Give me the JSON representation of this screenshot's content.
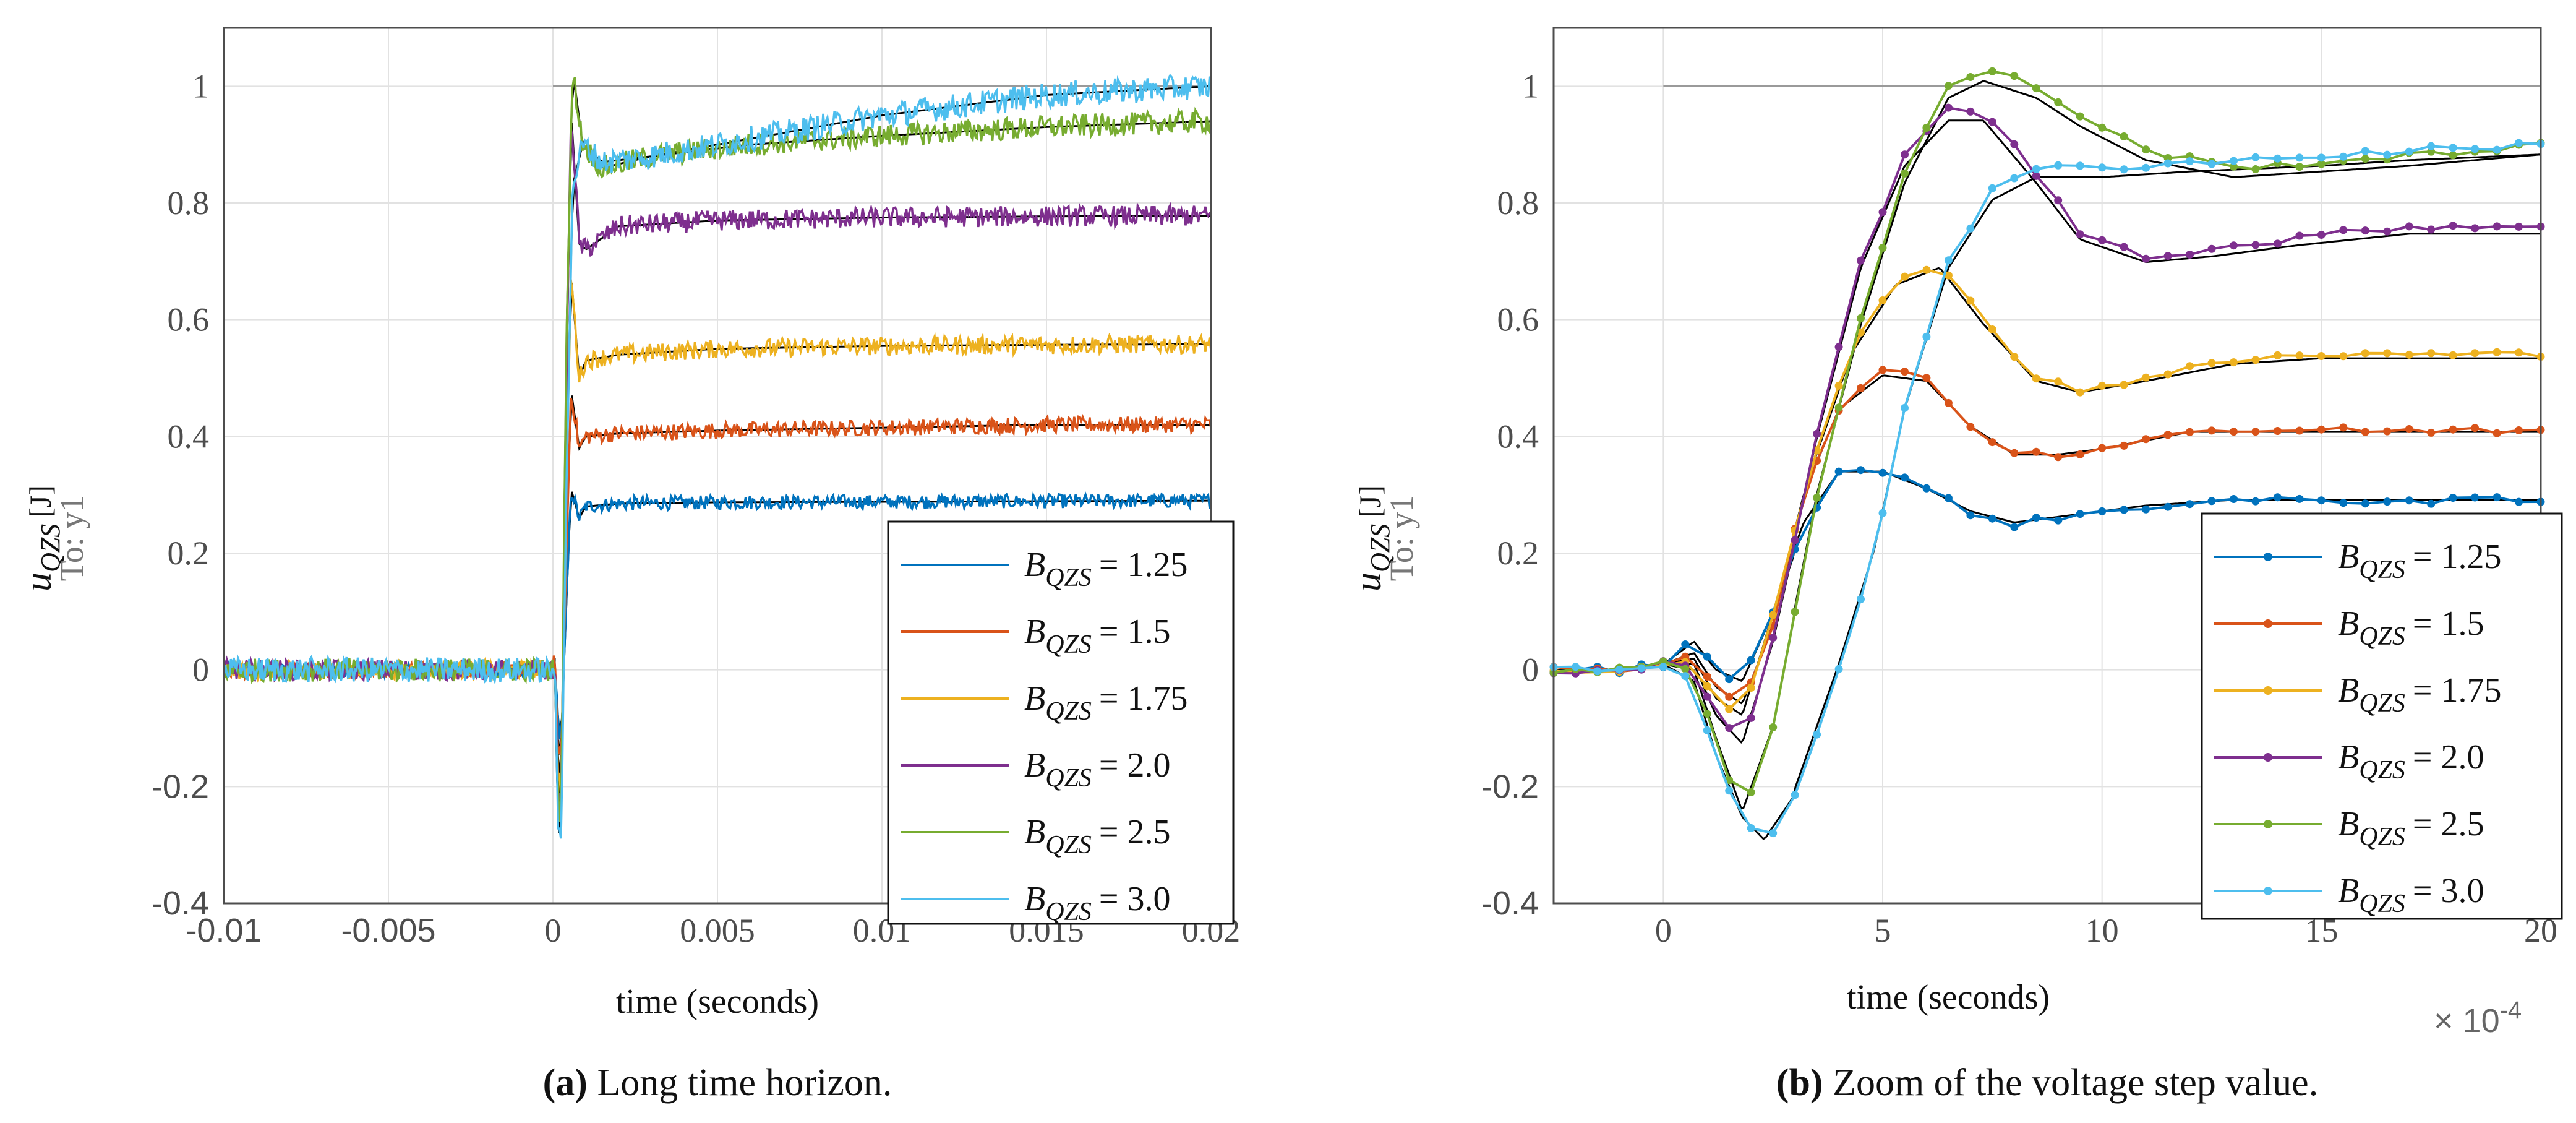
{
  "colors": {
    "series": [
      "#0072BD",
      "#D95319",
      "#EDB120",
      "#7E2F8E",
      "#77AC30",
      "#4DBEEE"
    ],
    "model": "#000000",
    "grid": "#e2e2e2",
    "axis": "#4d4d4d"
  },
  "captions": {
    "a_label": "(a)",
    "a_text": " Long time horizon.",
    "b_label": "(b)",
    "b_text": " Zoom of the voltage step value."
  },
  "legend": {
    "prefix": "B",
    "subscript": "QZS",
    "entries": [
      "= 1.25",
      "= 1.5",
      "= 1.75",
      "= 2.0",
      "= 2.5",
      "= 3.0"
    ]
  },
  "chart_data": [
    {
      "id": "a",
      "type": "line",
      "title": "",
      "xlabel": "time (seconds)",
      "ylabel": {
        "main": "u",
        "sub": "QZS",
        "unit": "[J]",
        "to": "To: y1"
      },
      "xlim": [
        -0.01,
        0.02
      ],
      "ylim": [
        -0.4,
        1.1
      ],
      "xticks": [
        -0.01,
        -0.005,
        0,
        0.005,
        0.01,
        0.015,
        0.02
      ],
      "xtick_labels": [
        "-0.01",
        "-0.005",
        "0",
        "0.005",
        "0.01",
        "0.015",
        "0.02"
      ],
      "yticks": [
        -0.4,
        -0.2,
        0,
        0.2,
        0.4,
        0.6,
        0.8,
        1
      ],
      "ytick_labels": [
        "-0.4",
        "-0.2",
        "0",
        "0.2",
        "0.4",
        "0.6",
        "0.8",
        "1"
      ],
      "reference_line": 1,
      "grid": true,
      "legend_position": "bottom-right",
      "series": [
        {
          "name": "B_QZS = 1.25",
          "values": [
            [
              -0.01,
              0
            ],
            [
              0,
              0
            ],
            [
              5e-05,
              0.02
            ],
            [
              0.00015,
              -0.09
            ],
            [
              0.00025,
              -0.12
            ],
            [
              0.0004,
              0.1
            ],
            [
              0.00055,
              0.31
            ],
            [
              0.0008,
              0.26
            ],
            [
              0.001,
              0.28
            ],
            [
              0.002,
              0.285
            ],
            [
              0.005,
              0.287
            ],
            [
              0.01,
              0.288
            ],
            [
              0.015,
              0.289
            ],
            [
              0.02,
              0.29
            ]
          ]
        },
        {
          "name": "B_QZS = 1.5",
          "values": [
            [
              -0.01,
              0
            ],
            [
              0,
              0
            ],
            [
              5e-05,
              0.02
            ],
            [
              0.00015,
              -0.13
            ],
            [
              0.00025,
              -0.16
            ],
            [
              0.0004,
              0.18
            ],
            [
              0.00055,
              0.48
            ],
            [
              0.0008,
              0.38
            ],
            [
              0.001,
              0.4
            ],
            [
              0.002,
              0.405
            ],
            [
              0.005,
              0.41
            ],
            [
              0.01,
              0.415
            ],
            [
              0.015,
              0.42
            ],
            [
              0.02,
              0.42
            ]
          ]
        },
        {
          "name": "B_QZS = 1.75",
          "values": [
            [
              -0.01,
              0
            ],
            [
              0,
              0
            ],
            [
              5e-05,
              0.02
            ],
            [
              0.00015,
              -0.17
            ],
            [
              0.00025,
              -0.2
            ],
            [
              0.0004,
              0.3
            ],
            [
              0.00055,
              0.68
            ],
            [
              0.0008,
              0.5
            ],
            [
              0.001,
              0.53
            ],
            [
              0.002,
              0.54
            ],
            [
              0.005,
              0.55
            ],
            [
              0.01,
              0.555
            ],
            [
              0.015,
              0.557
            ],
            [
              0.02,
              0.558
            ]
          ]
        },
        {
          "name": "B_QZS = 2.0",
          "values": [
            [
              -0.01,
              0
            ],
            [
              0,
              0
            ],
            [
              5e-05,
              0.02
            ],
            [
              0.00015,
              -0.2
            ],
            [
              0.00025,
              -0.24
            ],
            [
              0.0004,
              0.45
            ],
            [
              0.00055,
              0.96
            ],
            [
              0.0008,
              0.73
            ],
            [
              0.001,
              0.72
            ],
            [
              0.002,
              0.76
            ],
            [
              0.005,
              0.77
            ],
            [
              0.01,
              0.775
            ],
            [
              0.015,
              0.777
            ],
            [
              0.02,
              0.778
            ]
          ]
        },
        {
          "name": "B_QZS = 2.5",
          "values": [
            [
              -0.01,
              0
            ],
            [
              0,
              0
            ],
            [
              5e-05,
              0.02
            ],
            [
              0.00015,
              -0.22
            ],
            [
              0.00025,
              -0.26
            ],
            [
              0.0004,
              0.55
            ],
            [
              0.0006,
              1.03
            ],
            [
              0.0009,
              0.9
            ],
            [
              0.0015,
              0.86
            ],
            [
              0.003,
              0.88
            ],
            [
              0.006,
              0.9
            ],
            [
              0.01,
              0.915
            ],
            [
              0.015,
              0.93
            ],
            [
              0.02,
              0.94
            ]
          ]
        },
        {
          "name": "B_QZS = 3.0",
          "values": [
            [
              -0.01,
              0
            ],
            [
              0,
              0
            ],
            [
              5e-05,
              0.02
            ],
            [
              0.00015,
              -0.26
            ],
            [
              0.00025,
              -0.3
            ],
            [
              0.0004,
              0.3
            ],
            [
              0.0006,
              0.83
            ],
            [
              0.0009,
              0.9
            ],
            [
              0.0015,
              0.87
            ],
            [
              0.003,
              0.88
            ],
            [
              0.006,
              0.91
            ],
            [
              0.01,
              0.95
            ],
            [
              0.015,
              0.985
            ],
            [
              0.02,
              1.0
            ]
          ]
        }
      ]
    },
    {
      "id": "b",
      "type": "line",
      "title": "",
      "xlabel": "time (seconds)",
      "x_exponent": "× 10",
      "x_exponent_power": "-4",
      "ylabel": {
        "main": "u",
        "sub": "QZS",
        "unit": "[J]",
        "to": "To: y1"
      },
      "xlim": [
        -2.5,
        20
      ],
      "ylim": [
        -0.4,
        1.1
      ],
      "xticks": [
        0,
        5,
        10,
        15,
        20
      ],
      "xtick_labels": [
        "0",
        "5",
        "10",
        "15",
        "20"
      ],
      "yticks": [
        -0.4,
        -0.2,
        0,
        0.2,
        0.4,
        0.6,
        0.8,
        1
      ],
      "ytick_labels": [
        "-0.4",
        "-0.2",
        "0",
        "0.2",
        "0.4",
        "0.6",
        "0.8",
        "1"
      ],
      "reference_line": 1,
      "grid": true,
      "legend_position": "bottom-right",
      "series": [
        {
          "name": "B_QZS = 1.25",
          "values": [
            [
              -2.5,
              0
            ],
            [
              -1,
              0
            ],
            [
              0,
              0.01
            ],
            [
              0.7,
              0.05
            ],
            [
              1.2,
              0
            ],
            [
              1.8,
              -0.02
            ],
            [
              2.5,
              0.1
            ],
            [
              3.2,
              0.25
            ],
            [
              4,
              0.34
            ],
            [
              5,
              0.34
            ],
            [
              6,
              0.31
            ],
            [
              7,
              0.27
            ],
            [
              8,
              0.25
            ],
            [
              9,
              0.26
            ],
            [
              10,
              0.27
            ],
            [
              11,
              0.28
            ],
            [
              13,
              0.29
            ],
            [
              15,
              0.29
            ],
            [
              17,
              0.29
            ],
            [
              20,
              0.29
            ]
          ]
        },
        {
          "name": "B_QZS = 1.5",
          "values": [
            [
              -2.5,
              0
            ],
            [
              -1,
              0
            ],
            [
              0,
              0.01
            ],
            [
              0.7,
              0.03
            ],
            [
              1.2,
              -0.03
            ],
            [
              1.8,
              -0.06
            ],
            [
              2.5,
              0.08
            ],
            [
              3.2,
              0.3
            ],
            [
              4,
              0.45
            ],
            [
              5,
              0.51
            ],
            [
              6,
              0.5
            ],
            [
              7,
              0.42
            ],
            [
              8,
              0.37
            ],
            [
              9,
              0.37
            ],
            [
              10,
              0.38
            ],
            [
              12,
              0.41
            ],
            [
              14,
              0.41
            ],
            [
              17,
              0.41
            ],
            [
              20,
              0.41
            ]
          ]
        },
        {
          "name": "B_QZS = 1.75",
          "values": [
            [
              -2.5,
              0
            ],
            [
              -1,
              0
            ],
            [
              0,
              0.01
            ],
            [
              0.7,
              0.02
            ],
            [
              1.2,
              -0.05
            ],
            [
              1.8,
              -0.08
            ],
            [
              2.5,
              0.1
            ],
            [
              3.4,
              0.35
            ],
            [
              4.3,
              0.55
            ],
            [
              5.3,
              0.67
            ],
            [
              6.3,
              0.7
            ],
            [
              7.3,
              0.6
            ],
            [
              8.5,
              0.5
            ],
            [
              9.5,
              0.48
            ],
            [
              11,
              0.5
            ],
            [
              13,
              0.53
            ],
            [
              15,
              0.54
            ],
            [
              17,
              0.54
            ],
            [
              20,
              0.54
            ]
          ]
        },
        {
          "name": "B_QZS = 2.0",
          "values": [
            [
              -2.5,
              0
            ],
            [
              -1,
              0
            ],
            [
              0,
              0.01
            ],
            [
              0.7,
              0.01
            ],
            [
              1.2,
              -0.08
            ],
            [
              1.8,
              -0.13
            ],
            [
              2.5,
              0.05
            ],
            [
              3.5,
              0.4
            ],
            [
              4.5,
              0.7
            ],
            [
              5.5,
              0.88
            ],
            [
              6.5,
              0.96
            ],
            [
              7.3,
              0.96
            ],
            [
              8.5,
              0.85
            ],
            [
              9.5,
              0.75
            ],
            [
              11,
              0.71
            ],
            [
              12.5,
              0.72
            ],
            [
              14.5,
              0.74
            ],
            [
              17,
              0.76
            ],
            [
              20,
              0.76
            ]
          ]
        },
        {
          "name": "B_QZS = 2.5",
          "values": [
            [
              -2.5,
              0
            ],
            [
              -1,
              0
            ],
            [
              0,
              0.01
            ],
            [
              0.7,
              0
            ],
            [
              1.2,
              -0.12
            ],
            [
              1.8,
              -0.25
            ],
            [
              2.5,
              -0.1
            ],
            [
              3.5,
              0.3
            ],
            [
              4.5,
              0.6
            ],
            [
              5.5,
              0.85
            ],
            [
              6.5,
              1.0
            ],
            [
              7.3,
              1.03
            ],
            [
              8.5,
              1.0
            ],
            [
              9.5,
              0.95
            ],
            [
              11,
              0.89
            ],
            [
              13,
              0.86
            ],
            [
              15,
              0.87
            ],
            [
              17,
              0.88
            ],
            [
              20,
              0.9
            ]
          ]
        },
        {
          "name": "B_QZS = 3.0",
          "values": [
            [
              -2.5,
              0
            ],
            [
              -1,
              0
            ],
            [
              0,
              0.01
            ],
            [
              0.7,
              -0.02
            ],
            [
              1.2,
              -0.15
            ],
            [
              1.8,
              -0.26
            ],
            [
              2.3,
              -0.3
            ],
            [
              3,
              -0.22
            ],
            [
              4,
              0
            ],
            [
              4.8,
              0.2
            ],
            [
              5.5,
              0.45
            ],
            [
              6.5,
              0.7
            ],
            [
              7.5,
              0.82
            ],
            [
              8.5,
              0.86
            ],
            [
              10,
              0.86
            ],
            [
              12,
              0.87
            ],
            [
              15,
              0.88
            ],
            [
              17,
              0.89
            ],
            [
              20,
              0.9
            ]
          ]
        }
      ]
    }
  ]
}
